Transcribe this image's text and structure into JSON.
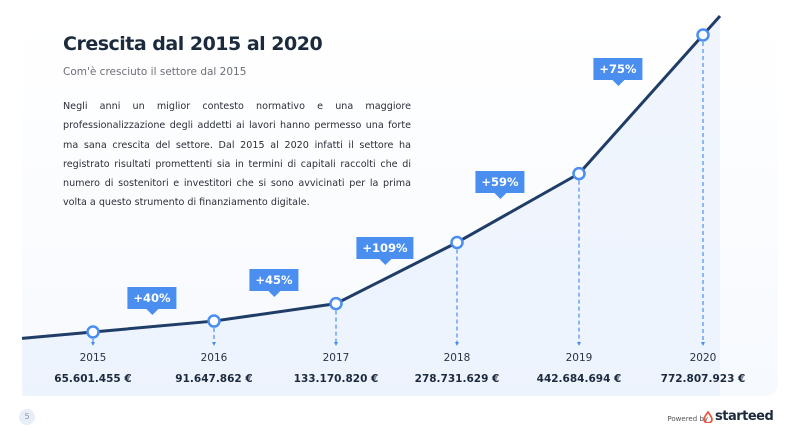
{
  "header": {
    "title": "Crescita dal 2015 al 2020",
    "subtitle": "Com'è cresciuto il settore dal 2015",
    "body": "Negli anni un miglior contesto normativo e una maggiore professionalizzazione degli addetti ai lavori hanno permesso una forte ma sana crescita del settore. Dal 2015 al 2020 infatti il settore ha registrato risultati promettenti sia in termini di capitali raccolti che di numero di sostenitori e investitori che si sono avvicinati per la prima volta a questo strumento di finanziamento digitale."
  },
  "chart_data": {
    "type": "line",
    "title": "",
    "xlabel": "",
    "ylabel": "",
    "categories": [
      "2015",
      "2016",
      "2017",
      "2018",
      "2019",
      "2020"
    ],
    "values": [
      65601455,
      91647862,
      133170820,
      278731629,
      442684694,
      772807923
    ],
    "value_labels": [
      "65.601.455 €",
      "91.647.862 €",
      "133.170.820 €",
      "278.731.629 €",
      "442.684.694 €",
      "772.807.923 €"
    ],
    "growth_labels": [
      "+40%",
      "+45%",
      "+109%",
      "+59%",
      "+75%"
    ],
    "grid": false,
    "colors": {
      "line": "#1f3d66",
      "accent": "#4a8ef0",
      "fill": "#eaf1fc"
    }
  },
  "footer": {
    "page_number": "5",
    "powered_by": "Powered by",
    "brand": "starteed"
  }
}
